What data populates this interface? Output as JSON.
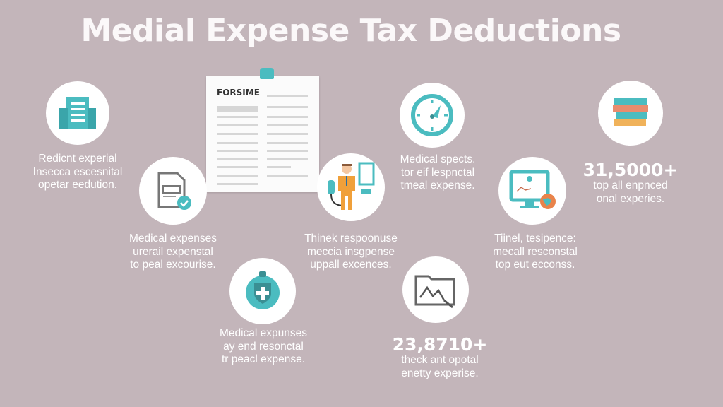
{
  "title": "Medial Expense Tax Deductions",
  "form": {
    "label": "FORSIME"
  },
  "items": [
    {
      "icon": "building-icon",
      "lines": [
        "Redicnt experial",
        "Insecca escesnital",
        "opetar eedution."
      ]
    },
    {
      "icon": "document-check-icon",
      "lines": [
        "Medical expenses",
        "urerail expenstal",
        "to peal excourise."
      ]
    },
    {
      "icon": "businessman-icon",
      "lines": [
        "Thinek respoonuse",
        "meccia insgpense",
        "uppall excences."
      ]
    },
    {
      "icon": "gauge-icon",
      "lines": [
        "Medical spects.",
        "tor eif lespnctal",
        "tmeal expense."
      ]
    },
    {
      "icon": "monitor-globe-icon",
      "lines": [
        "Tiinel, tesipence:",
        "mecall resconstal",
        "top eut ecconss."
      ]
    },
    {
      "icon": "books-icon",
      "stat": "31,5000+",
      "lines": [
        "top all enpnced",
        "onal experies."
      ]
    },
    {
      "icon": "medical-shield-icon",
      "lines": [
        "Medical expunses",
        "ay end resonctal",
        "tr peacl expense."
      ]
    },
    {
      "icon": "folder-chart-icon",
      "stat": "23,8710+",
      "lines": [
        "theck ant opotal",
        "enetty experise."
      ]
    }
  ],
  "colors": {
    "background": "#c3b5ba",
    "accent": "#4bbcc0",
    "orange": "#f0a03a"
  }
}
